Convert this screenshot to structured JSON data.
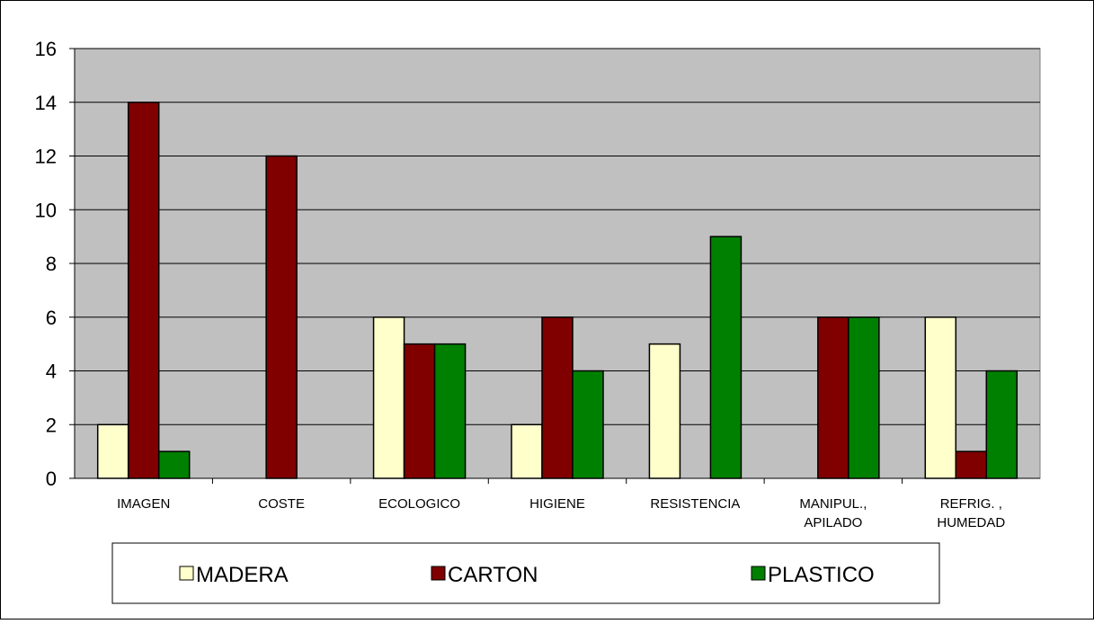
{
  "chart_data": {
    "type": "bar",
    "title": "",
    "xlabel": "",
    "ylabel": "",
    "ylim": [
      0,
      16
    ],
    "yticks": [
      0,
      2,
      4,
      6,
      8,
      10,
      12,
      14,
      16
    ],
    "grid": true,
    "legend_position": "bottom",
    "categories": [
      [
        "IMAGEN"
      ],
      [
        "COSTE"
      ],
      [
        "ECOLOGICO"
      ],
      [
        "HIGIENE"
      ],
      [
        "RESISTENCIA"
      ],
      [
        "MANIPUL.,",
        "APILADO"
      ],
      [
        "REFRIG. ,",
        "HUMEDAD"
      ]
    ],
    "series": [
      {
        "name": "MADERA",
        "color": "#FFFFCC",
        "values": [
          2,
          0,
          6,
          2,
          5,
          0,
          6
        ]
      },
      {
        "name": "CARTON",
        "color": "#800000",
        "values": [
          14,
          12,
          5,
          6,
          0,
          6,
          1
        ]
      },
      {
        "name": "PLASTICO",
        "color": "#008000",
        "values": [
          1,
          0,
          5,
          4,
          9,
          6,
          4
        ]
      }
    ],
    "plot_background": "#C0C0C0"
  }
}
